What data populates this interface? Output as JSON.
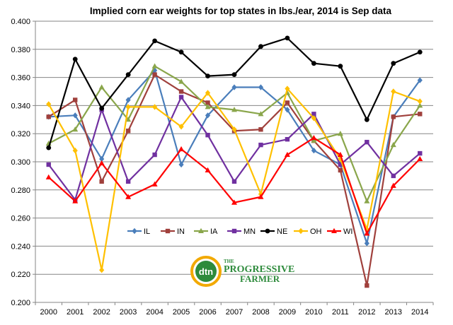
{
  "chart_data": {
    "type": "line",
    "title": "Implied corn ear weights for top states in lbs./ear, 2014 is Sep data",
    "xlabel": "",
    "ylabel": "",
    "categories": [
      "2000",
      "2001",
      "2002",
      "2003",
      "2004",
      "2005",
      "2006",
      "2007",
      "2008",
      "2009",
      "2010",
      "2011",
      "2012",
      "2013",
      "2014"
    ],
    "ylim": [
      0.2,
      0.4
    ],
    "yticks": [
      "0.200",
      "0.220",
      "0.240",
      "0.260",
      "0.280",
      "0.300",
      "0.320",
      "0.340",
      "0.360",
      "0.380",
      "0.400"
    ],
    "grid": "horizontal",
    "legend_position": "bottom-center",
    "series": [
      {
        "name": "IL",
        "color": "#4a7ebb",
        "marker": "diamond",
        "values": [
          0.332,
          0.333,
          0.302,
          0.344,
          0.365,
          0.298,
          0.333,
          0.353,
          0.353,
          0.337,
          0.308,
          0.298,
          0.242,
          0.332,
          0.358
        ]
      },
      {
        "name": "IN",
        "color": "#a0403c",
        "marker": "square",
        "values": [
          0.332,
          0.344,
          0.286,
          0.322,
          0.362,
          0.35,
          0.342,
          0.322,
          0.323,
          0.342,
          0.315,
          0.294,
          0.212,
          0.332,
          0.334
        ]
      },
      {
        "name": "IA",
        "color": "#8aa64b",
        "marker": "triangle",
        "values": [
          0.313,
          0.323,
          0.353,
          0.33,
          0.368,
          0.357,
          0.339,
          0.337,
          0.334,
          0.349,
          0.315,
          0.32,
          0.272,
          0.312,
          0.34
        ]
      },
      {
        "name": "MN",
        "color": "#7030a0",
        "marker": "square",
        "values": [
          0.298,
          0.273,
          0.337,
          0.286,
          0.305,
          0.346,
          0.319,
          0.286,
          0.312,
          0.316,
          0.334,
          0.298,
          0.314,
          0.29,
          0.306
        ]
      },
      {
        "name": "NE",
        "color": "#000000",
        "marker": "circle",
        "values": [
          0.31,
          0.373,
          0.338,
          0.362,
          0.386,
          0.378,
          0.361,
          0.362,
          0.382,
          0.388,
          0.37,
          0.368,
          0.33,
          0.37,
          0.378
        ]
      },
      {
        "name": "OH",
        "color": "#ffc000",
        "marker": "diamond",
        "values": [
          0.341,
          0.308,
          0.223,
          0.339,
          0.339,
          0.325,
          0.349,
          0.323,
          0.277,
          0.352,
          0.331,
          0.302,
          0.252,
          0.35,
          0.343
        ]
      },
      {
        "name": "WI",
        "color": "#ff0000",
        "marker": "triangle",
        "values": [
          0.289,
          0.272,
          0.299,
          0.275,
          0.284,
          0.309,
          0.294,
          0.271,
          0.275,
          0.305,
          0.317,
          0.305,
          0.249,
          0.283,
          0.302
        ]
      }
    ]
  },
  "logo": {
    "brand_short": "dtn",
    "brand_line1": "PROGRESSIVE",
    "brand_line2": "FARMER",
    "brand_prefix": "THE"
  }
}
